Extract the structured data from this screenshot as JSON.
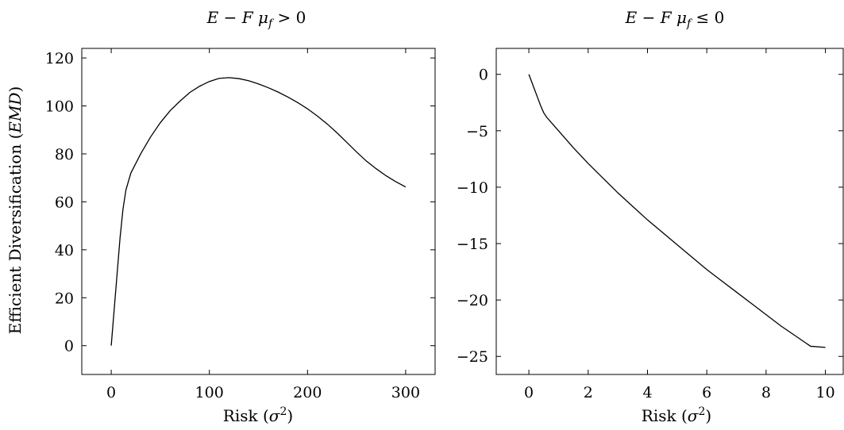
{
  "chart_data": [
    {
      "type": "line",
      "title": "E − F μ_f > 0",
      "title_parts": [
        "E",
        " − ",
        "F",
        " ",
        "μ",
        "f",
        " > 0"
      ],
      "xlabel": "Risk (σ²)",
      "xlabel_parts": [
        "Risk (",
        "σ",
        "2",
        ")"
      ],
      "ylabel": "Efficient Diversification (EMD)",
      "ylabel_parts": [
        "Efficient Diversification (",
        "EMD",
        ")"
      ],
      "xlim": [
        -30,
        330
      ],
      "ylim": [
        -12,
        124
      ],
      "xticks": [
        0,
        100,
        200,
        300
      ],
      "xtick_labels": [
        "0",
        "100",
        "200",
        "300"
      ],
      "yticks": [
        0,
        20,
        40,
        60,
        80,
        100,
        120
      ],
      "ytick_labels": [
        "0",
        "20",
        "40",
        "60",
        "80",
        "100",
        "120"
      ],
      "grid": false,
      "series": [
        {
          "x": [
            0,
            3,
            6,
            9,
            12,
            15,
            20,
            30,
            40,
            50,
            60,
            70,
            80,
            90,
            100,
            110,
            120,
            130,
            140,
            150,
            160,
            170,
            180,
            190,
            200,
            210,
            220,
            230,
            240,
            250,
            260,
            270,
            280,
            290,
            300
          ],
          "y": [
            0,
            15,
            30,
            45,
            57,
            65,
            72,
            80,
            87,
            93,
            98,
            102,
            105.6,
            108.2,
            110.2,
            111.5,
            111.8,
            111.4,
            110.5,
            109.2,
            107.6,
            105.8,
            103.7,
            101.4,
            98.8,
            95.8,
            92.5,
            88.8,
            84.8,
            80.8,
            77,
            73.8,
            70.9,
            68.4,
            66.2
          ]
        }
      ]
    },
    {
      "type": "line",
      "title": "E − F μ_f ≤ 0",
      "title_parts": [
        "E",
        " − ",
        "F",
        " ",
        "μ",
        "f",
        " ≤ 0"
      ],
      "xlabel": "Risk (σ²)",
      "xlabel_parts": [
        "Risk (",
        "σ",
        "2",
        ")"
      ],
      "ylabel": "",
      "xlim": [
        -1.1,
        10.6
      ],
      "ylim": [
        -26.6,
        2.3
      ],
      "xticks": [
        0,
        2,
        4,
        6,
        8,
        10
      ],
      "xtick_labels": [
        "0",
        "2",
        "4",
        "6",
        "8",
        "10"
      ],
      "yticks": [
        0,
        -5,
        -10,
        -15,
        -20,
        -25
      ],
      "ytick_labels": [
        "0",
        "−5",
        "−10",
        "−15",
        "−20",
        "−25"
      ],
      "grid": false,
      "series": [
        {
          "x": [
            0,
            0.1,
            0.2,
            0.3,
            0.4,
            0.5,
            0.6,
            0.8,
            1.0,
            1.5,
            2,
            2.5,
            3,
            3.5,
            4,
            4.5,
            5,
            5.5,
            6,
            6.5,
            7,
            7.5,
            8,
            8.5,
            9,
            9.5,
            10
          ],
          "y": [
            0,
            -0.7,
            -1.4,
            -2.1,
            -2.8,
            -3.4,
            -3.8,
            -4.4,
            -5.0,
            -6.5,
            -7.9,
            -9.2,
            -10.5,
            -11.7,
            -12.9,
            -14.0,
            -15.1,
            -16.2,
            -17.3,
            -18.3,
            -19.3,
            -20.3,
            -21.3,
            -22.3,
            -23.2,
            -24.1,
            -24.2
          ]
        }
      ]
    }
  ]
}
